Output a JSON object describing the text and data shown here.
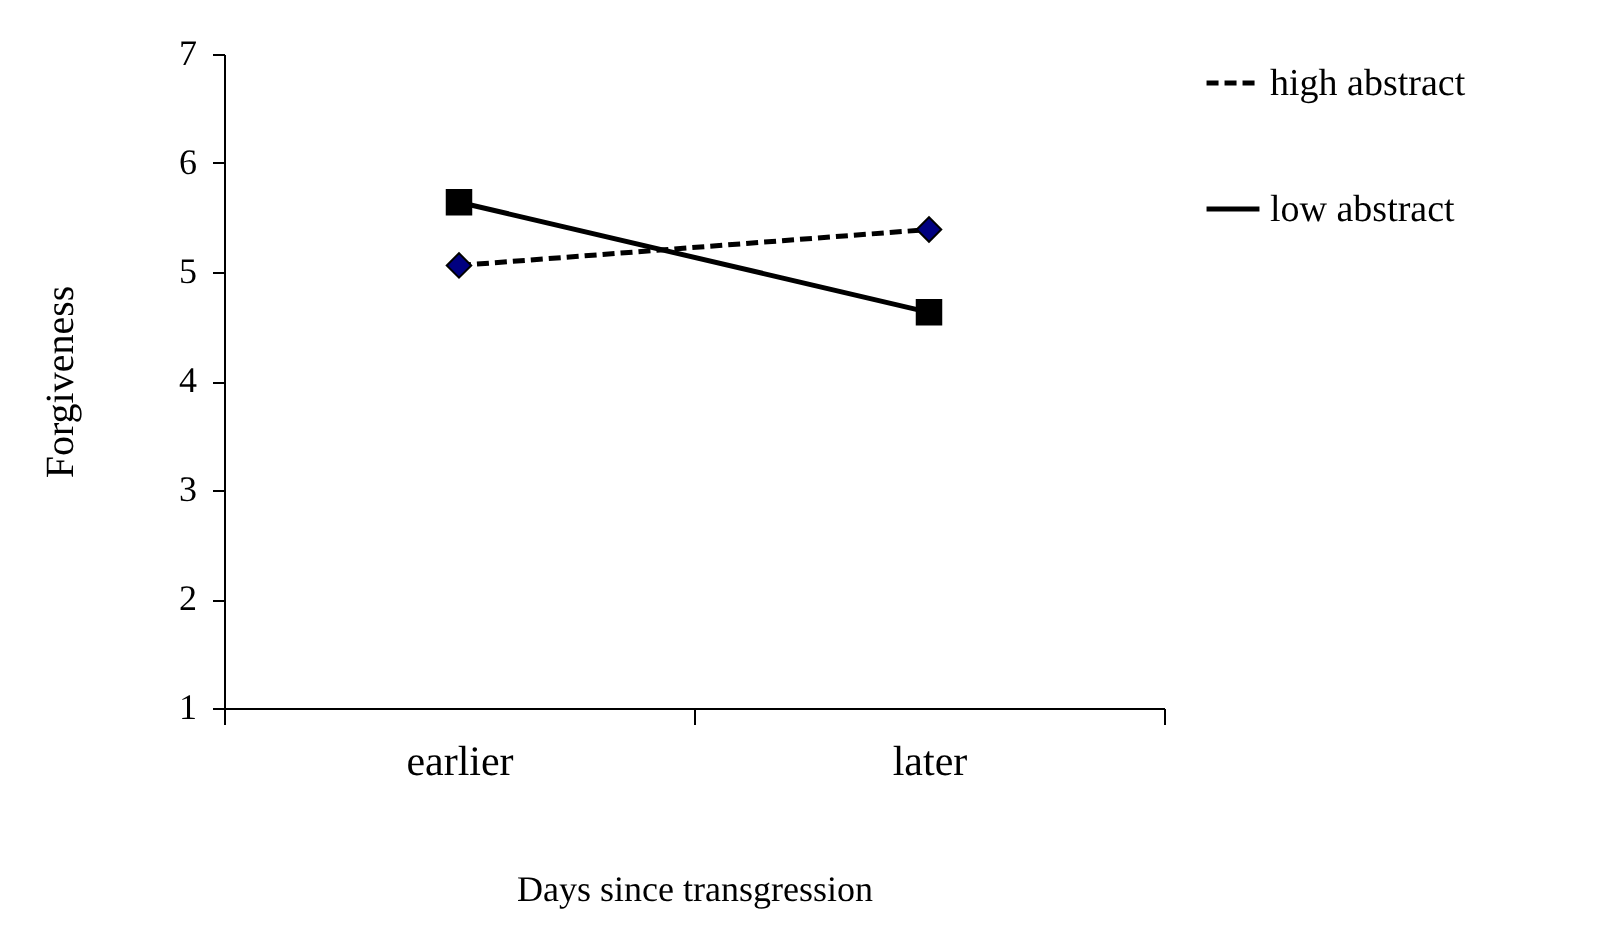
{
  "chart_data": {
    "type": "line",
    "xlabel": "Days since transgression",
    "ylabel": "Forgiveness",
    "categories": [
      "earlier",
      "later"
    ],
    "series": [
      {
        "name": "high abstract",
        "color": "#000080",
        "values": [
          5.06,
          5.39
        ],
        "marker": "diamond",
        "line_style": "dashed"
      },
      {
        "name": "low abstract",
        "color": "#000000",
        "values": [
          5.64,
          4.63
        ],
        "marker": "square",
        "line_style": "solid"
      }
    ],
    "ylim": [
      1,
      7
    ],
    "yticks": [
      1,
      2,
      3,
      4,
      5,
      6,
      7
    ],
    "grid": false,
    "legend": "right"
  }
}
